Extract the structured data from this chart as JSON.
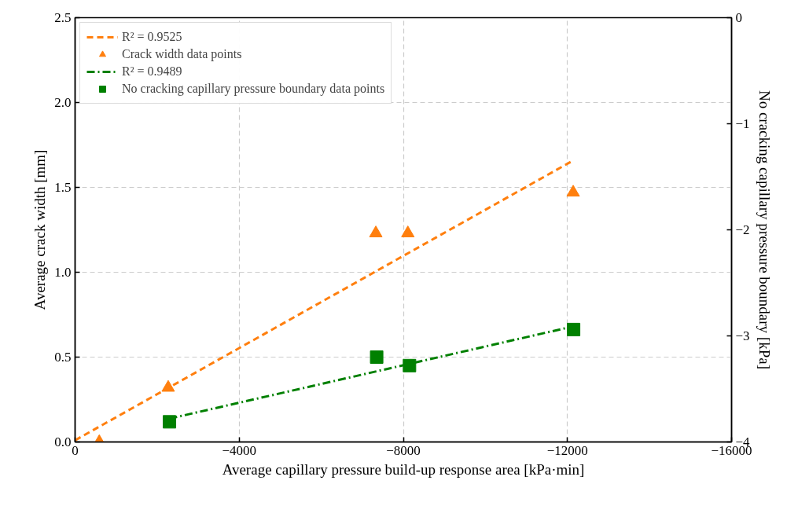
{
  "chart_data": {
    "type": "scatter",
    "xlabel": "Average capillary pressure build-up response area [kPa·min]",
    "ylabel": "Average crack width [mm]",
    "y2label": "No cracking capillary pressure boundary [kPa]",
    "xlim": [
      0,
      -16000
    ],
    "xticks": [
      0,
      {
        "value": -4000,
        "label": "−4000"
      },
      {
        "value": -8000,
        "label": "−8000"
      },
      {
        "value": -12000,
        "label": "−12000"
      },
      {
        "value": -16000,
        "label": "−16000"
      }
    ],
    "ylim": [
      0,
      2.5
    ],
    "yticks": [
      {
        "value": 0,
        "label": "0.0"
      },
      0.5,
      {
        "value": 1,
        "label": "1.0"
      },
      1.5,
      {
        "value": 2,
        "label": "2.0"
      },
      2.5
    ],
    "y2lim": [
      -4,
      0
    ],
    "y2ticks": [
      {
        "value": -4,
        "label": "−4"
      },
      {
        "value": -3,
        "label": "−3"
      },
      {
        "value": -2,
        "label": "−2"
      },
      {
        "value": -1,
        "label": "−1"
      },
      0
    ],
    "grid": true,
    "legend": "top left",
    "series": [
      {
        "name": "R² = 0.9525",
        "type": "line",
        "line_style": "dashed",
        "color": "#ff7f0e",
        "x": [
          0,
          -12150
        ],
        "values": [
          0.01,
          1.66
        ]
      },
      {
        "name": "Crack width data points",
        "marker": "triangle",
        "color": "#ff7f0e",
        "x": [
          -590,
          -2270,
          -7330,
          -8110,
          -12140
        ],
        "values": [
          0.0,
          0.32,
          1.23,
          1.23,
          1.47
        ]
      },
      {
        "name": "R² = 0.9489",
        "type": "line",
        "line_style": "dashdot",
        "color": "#008000",
        "axis": "y2",
        "x": [
          -2300,
          -12150
        ],
        "values": [
          -3.78,
          -2.91
        ]
      },
      {
        "name": "No cracking capillary pressure boundary data points",
        "marker": "square",
        "color": "#008000",
        "axis": "y2",
        "x": [
          -2300,
          -7350,
          -8150,
          -12150
        ],
        "values": [
          -3.81,
          -3.2,
          -3.28,
          -2.94
        ]
      }
    ]
  }
}
